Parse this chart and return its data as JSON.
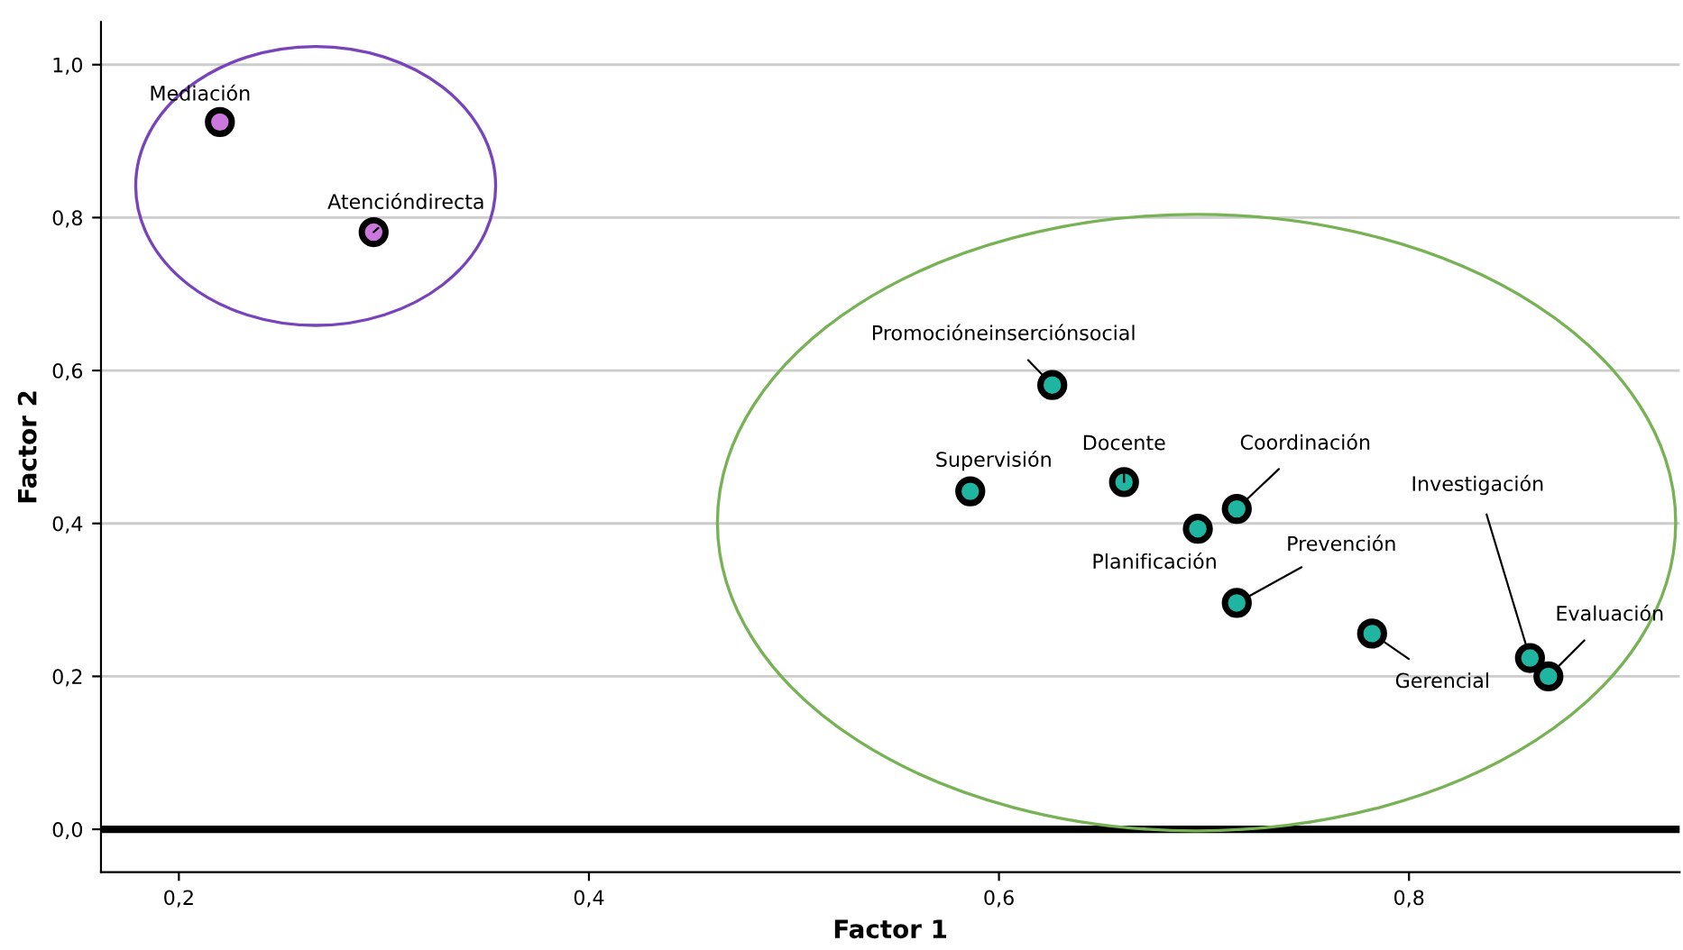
{
  "chart_data": {
    "type": "scatter",
    "xlabel": "Factor 1",
    "ylabel": "Factor 2",
    "xlim": [
      0.162,
      0.932
    ],
    "ylim": [
      -0.056,
      1.056
    ],
    "xticks": [
      {
        "value": 0.2,
        "label": "0,2"
      },
      {
        "value": 0.4,
        "label": "0,4"
      },
      {
        "value": 0.6,
        "label": "0,6"
      },
      {
        "value": 0.8,
        "label": "0,8"
      }
    ],
    "yticks": [
      {
        "value": 0.0,
        "label": "0,0"
      },
      {
        "value": 0.2,
        "label": "0,2"
      },
      {
        "value": 0.4,
        "label": "0,4"
      },
      {
        "value": 0.6,
        "label": "0,6"
      },
      {
        "value": 0.8,
        "label": "0,8"
      },
      {
        "value": 1.0,
        "label": "1,0"
      }
    ],
    "grid": "y",
    "marker": "circle",
    "legend": false,
    "ref_lines": [
      {
        "axis": "y",
        "value": 0.0,
        "color": "#000000"
      }
    ],
    "series": [
      {
        "color": "#cc77dd",
        "x": [
          0.22,
          0.295
        ],
        "values": [
          0.925,
          0.781
        ]
      },
      {
        "color": "#1fb5a0",
        "x": [
          0.626,
          0.586,
          0.661,
          0.716,
          0.697,
          0.716,
          0.782,
          0.859,
          0.868
        ],
        "values": [
          0.581,
          0.442,
          0.454,
          0.419,
          0.393,
          0.296,
          0.256,
          0.224,
          0.2
        ]
      }
    ],
    "annotations": [
      {
        "text": "Mediación",
        "x": 0.22,
        "y": 0.925
      },
      {
        "text": "Atencióndirecta",
        "x": 0.295,
        "y": 0.781
      },
      {
        "text": "Promocióneinserciónsocial",
        "x": 0.626,
        "y": 0.581
      },
      {
        "text": "Supervisión",
        "x": 0.586,
        "y": 0.442
      },
      {
        "text": "Docente",
        "x": 0.661,
        "y": 0.454
      },
      {
        "text": "Coordinación",
        "x": 0.716,
        "y": 0.419
      },
      {
        "text": "Planificación",
        "x": 0.697,
        "y": 0.393
      },
      {
        "text": "Prevención",
        "x": 0.716,
        "y": 0.296
      },
      {
        "text": "Gerencial",
        "x": 0.782,
        "y": 0.256
      },
      {
        "text": "Investigación",
        "x": 0.859,
        "y": 0.224
      },
      {
        "text": "Evaluación",
        "x": 0.868,
        "y": 0.2
      }
    ]
  }
}
